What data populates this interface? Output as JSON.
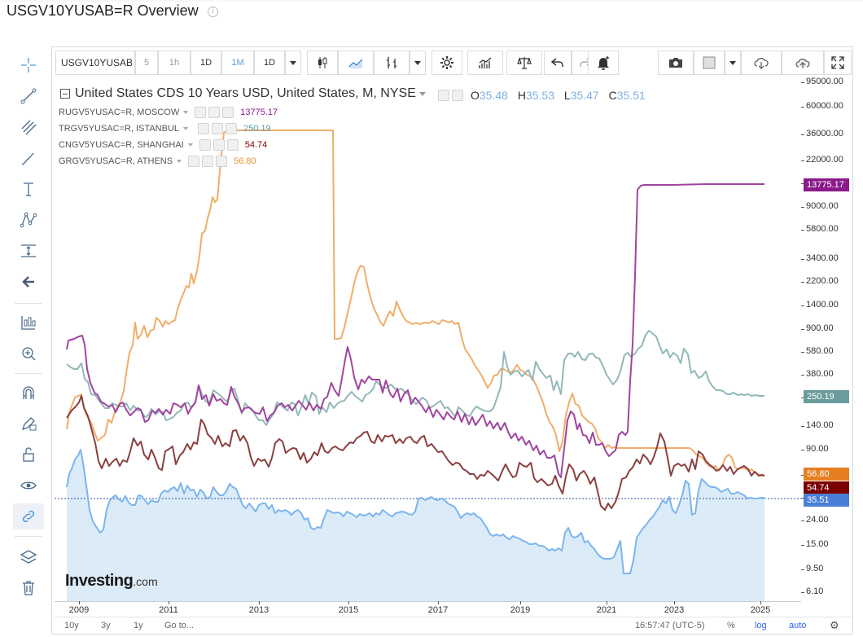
{
  "page": {
    "title": "USGV10YUSAB=R Overview",
    "info_icon": "info-icon"
  },
  "left_toolbar": {
    "items": [
      {
        "name": "crosshair-icon"
      },
      {
        "name": "trend-line-icon"
      },
      {
        "name": "fib-tools-icon"
      },
      {
        "name": "brush-icon"
      },
      {
        "name": "text-icon"
      },
      {
        "name": "pattern-icon"
      },
      {
        "name": "measure-icon"
      },
      {
        "name": "back-arrow-icon"
      },
      {
        "name": "long-short-icon"
      },
      {
        "name": "zoom-icon"
      },
      {
        "name": "magnet-icon"
      },
      {
        "name": "lock-pencil-icon"
      },
      {
        "name": "unlock-icon"
      },
      {
        "name": "eye-icon"
      },
      {
        "name": "link-icon"
      },
      {
        "name": "layers-icon"
      },
      {
        "name": "trash-icon"
      }
    ]
  },
  "top_toolbar": {
    "symbol": "USGV10YUSAB",
    "intervals": [
      "5",
      "1h",
      "1D",
      "1M",
      "1D"
    ],
    "icons": [
      "candles-icon",
      "area-line-icon",
      "bar-compare-icon",
      "settings-icon",
      "indicators-icon",
      "scale-icon",
      "undo-icon",
      "redo-icon",
      "alert-icon",
      "camera-icon",
      "color-box-icon",
      "cloud-download-icon",
      "cloud-upload-icon",
      "fullscreen-icon"
    ]
  },
  "legend": {
    "main_title": "United States CDS 10 Years USD, United States, M, NYSE",
    "ohlc": {
      "o_label": "O",
      "o": "35.48",
      "h_label": "H",
      "h": "35.53",
      "l_label": "L",
      "l": "35.47",
      "c_label": "C",
      "c": "35.51"
    },
    "series": [
      {
        "label": "RUGV5YUSAC=R, MOSCOW",
        "value": "13775.17",
        "color": "#8b1a8b"
      },
      {
        "label": "TRGV5YUSAC=R, ISTANBUL",
        "value": "250.19",
        "color": "#5f9ea0"
      },
      {
        "label": "CNGV5YUSAC=R, SHANGHAI",
        "value": "54.74",
        "color": "#800000"
      },
      {
        "label": "GRGV5YUSAC=R, ATHENS",
        "value": "56.80",
        "color": "#e69138"
      }
    ]
  },
  "chart_data": {
    "type": "line",
    "y_scale": "log",
    "y_ticks": [
      "95000.00",
      "60000.00",
      "36000.00",
      "22000.00",
      "13000.00",
      "9000.00",
      "5800.00",
      "3400.00",
      "2200.00",
      "1400.00",
      "900.00",
      "580.00",
      "380.00",
      "250.00",
      "140.00",
      "90.00",
      "56.00",
      "36.00",
      "24.00",
      "15.00",
      "9.50",
      "6.10"
    ],
    "x_ticks": [
      "2009",
      "2011",
      "2013",
      "2015",
      "2017",
      "2019",
      "2021",
      "2023",
      "2025"
    ],
    "series": [
      {
        "name": "RUGV5YUSAC=R, MOSCOW",
        "color": "#a0459e",
        "last": "13775.17"
      },
      {
        "name": "TRGV5YUSAC=R, ISTANBUL",
        "color": "#92b8b8",
        "last": "250.19"
      },
      {
        "name": "CNGV5YUSAC=R, SHANGHAI",
        "color": "#8b4040",
        "last": "54.74"
      },
      {
        "name": "GRGV5YUSAC=R, ATHENS",
        "color": "#f0ad6a",
        "last": "56.80"
      },
      {
        "name": "United States CDS 10 Years USD, United States, M, NYSE",
        "color": "#7cb5ec",
        "last": "35.51"
      }
    ]
  },
  "price_tags": [
    {
      "value": "13775.17",
      "color": "#8b1a8b"
    },
    {
      "value": "250.19",
      "color": "#6a9c9c"
    },
    {
      "value": "56.80",
      "color": "#e67e22"
    },
    {
      "value": "54.74",
      "color": "#7a0000"
    },
    {
      "value": "35.51",
      "color": "#4a7fd8"
    }
  ],
  "watermark": {
    "brand": "Investing",
    "suffix": ".com"
  },
  "bottom_bar": {
    "ranges": [
      "10y",
      "3y",
      "1y"
    ],
    "goto": "Go to...",
    "time": "16:57:47 (UTC-5)",
    "percent": "%",
    "log": "log",
    "auto": "auto"
  }
}
